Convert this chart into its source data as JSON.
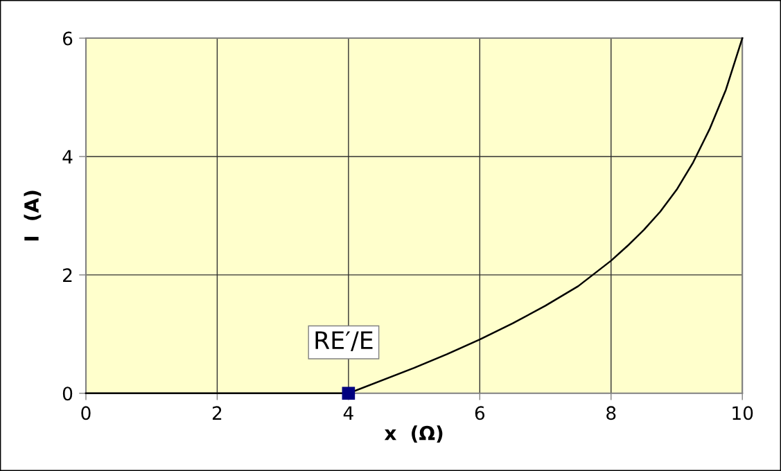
{
  "chart_data": {
    "type": "line",
    "xlabel": "x  (Ω)",
    "ylabel": "I  (A)",
    "series": [
      {
        "color": "#000000",
        "marker": "none",
        "x": [
          0,
          4,
          5,
          5.5,
          6,
          6.5,
          7,
          7.5,
          8,
          8.25,
          8.5,
          8.75,
          9,
          9.25,
          9.5,
          9.75,
          10
        ],
        "values": [
          0,
          0,
          0.43,
          0.66,
          0.91,
          1.18,
          1.48,
          1.81,
          2.24,
          2.49,
          2.76,
          3.07,
          3.44,
          3.9,
          4.46,
          5.13,
          6
        ]
      },
      {
        "type": "scatter",
        "color": "#000080",
        "marker": "square",
        "x": [
          4
        ],
        "values": [
          0
        ]
      }
    ],
    "annotations": [
      {
        "text": "RE′/E",
        "x": 4,
        "y": 0
      }
    ],
    "xlim": [
      0,
      10
    ],
    "ylim": [
      0,
      6
    ],
    "xticks": [
      0,
      2,
      4,
      6,
      8,
      10
    ],
    "yticks": [
      0,
      2,
      4,
      6
    ],
    "grid": true
  }
}
